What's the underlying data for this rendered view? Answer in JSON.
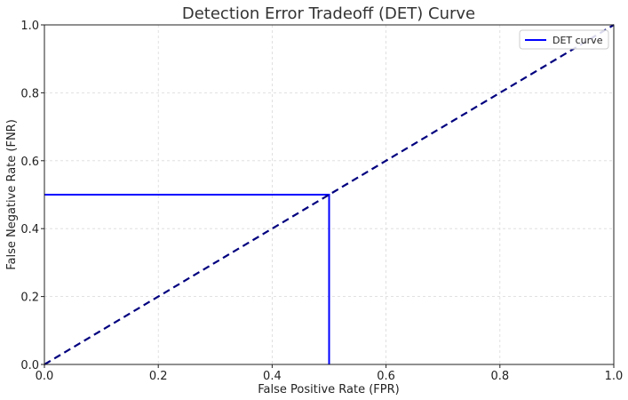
{
  "chart_data": {
    "type": "line",
    "title": "Detection Error Tradeoff (DET) Curve",
    "xlabel": "False Positive Rate (FPR)",
    "ylabel": "False Negative Rate (FNR)",
    "xlim": [
      0.0,
      1.0
    ],
    "ylim": [
      0.0,
      1.0
    ],
    "xticks": [
      "0.0",
      "0.2",
      "0.4",
      "0.6",
      "0.8",
      "1.0"
    ],
    "yticks": [
      "0.0",
      "0.2",
      "0.4",
      "0.6",
      "0.8",
      "1.0"
    ],
    "grid": true,
    "legend_position": "top-right",
    "series": [
      {
        "name": "DET curve",
        "x": [
          0.0,
          0.5,
          0.5
        ],
        "y": [
          0.5,
          0.5,
          0.0
        ],
        "color": "#0000ff",
        "style": "solid"
      },
      {
        "x": [
          0.0,
          1.0
        ],
        "y": [
          0.0,
          1.0
        ],
        "color": "#00007f",
        "style": "dashed"
      }
    ]
  }
}
